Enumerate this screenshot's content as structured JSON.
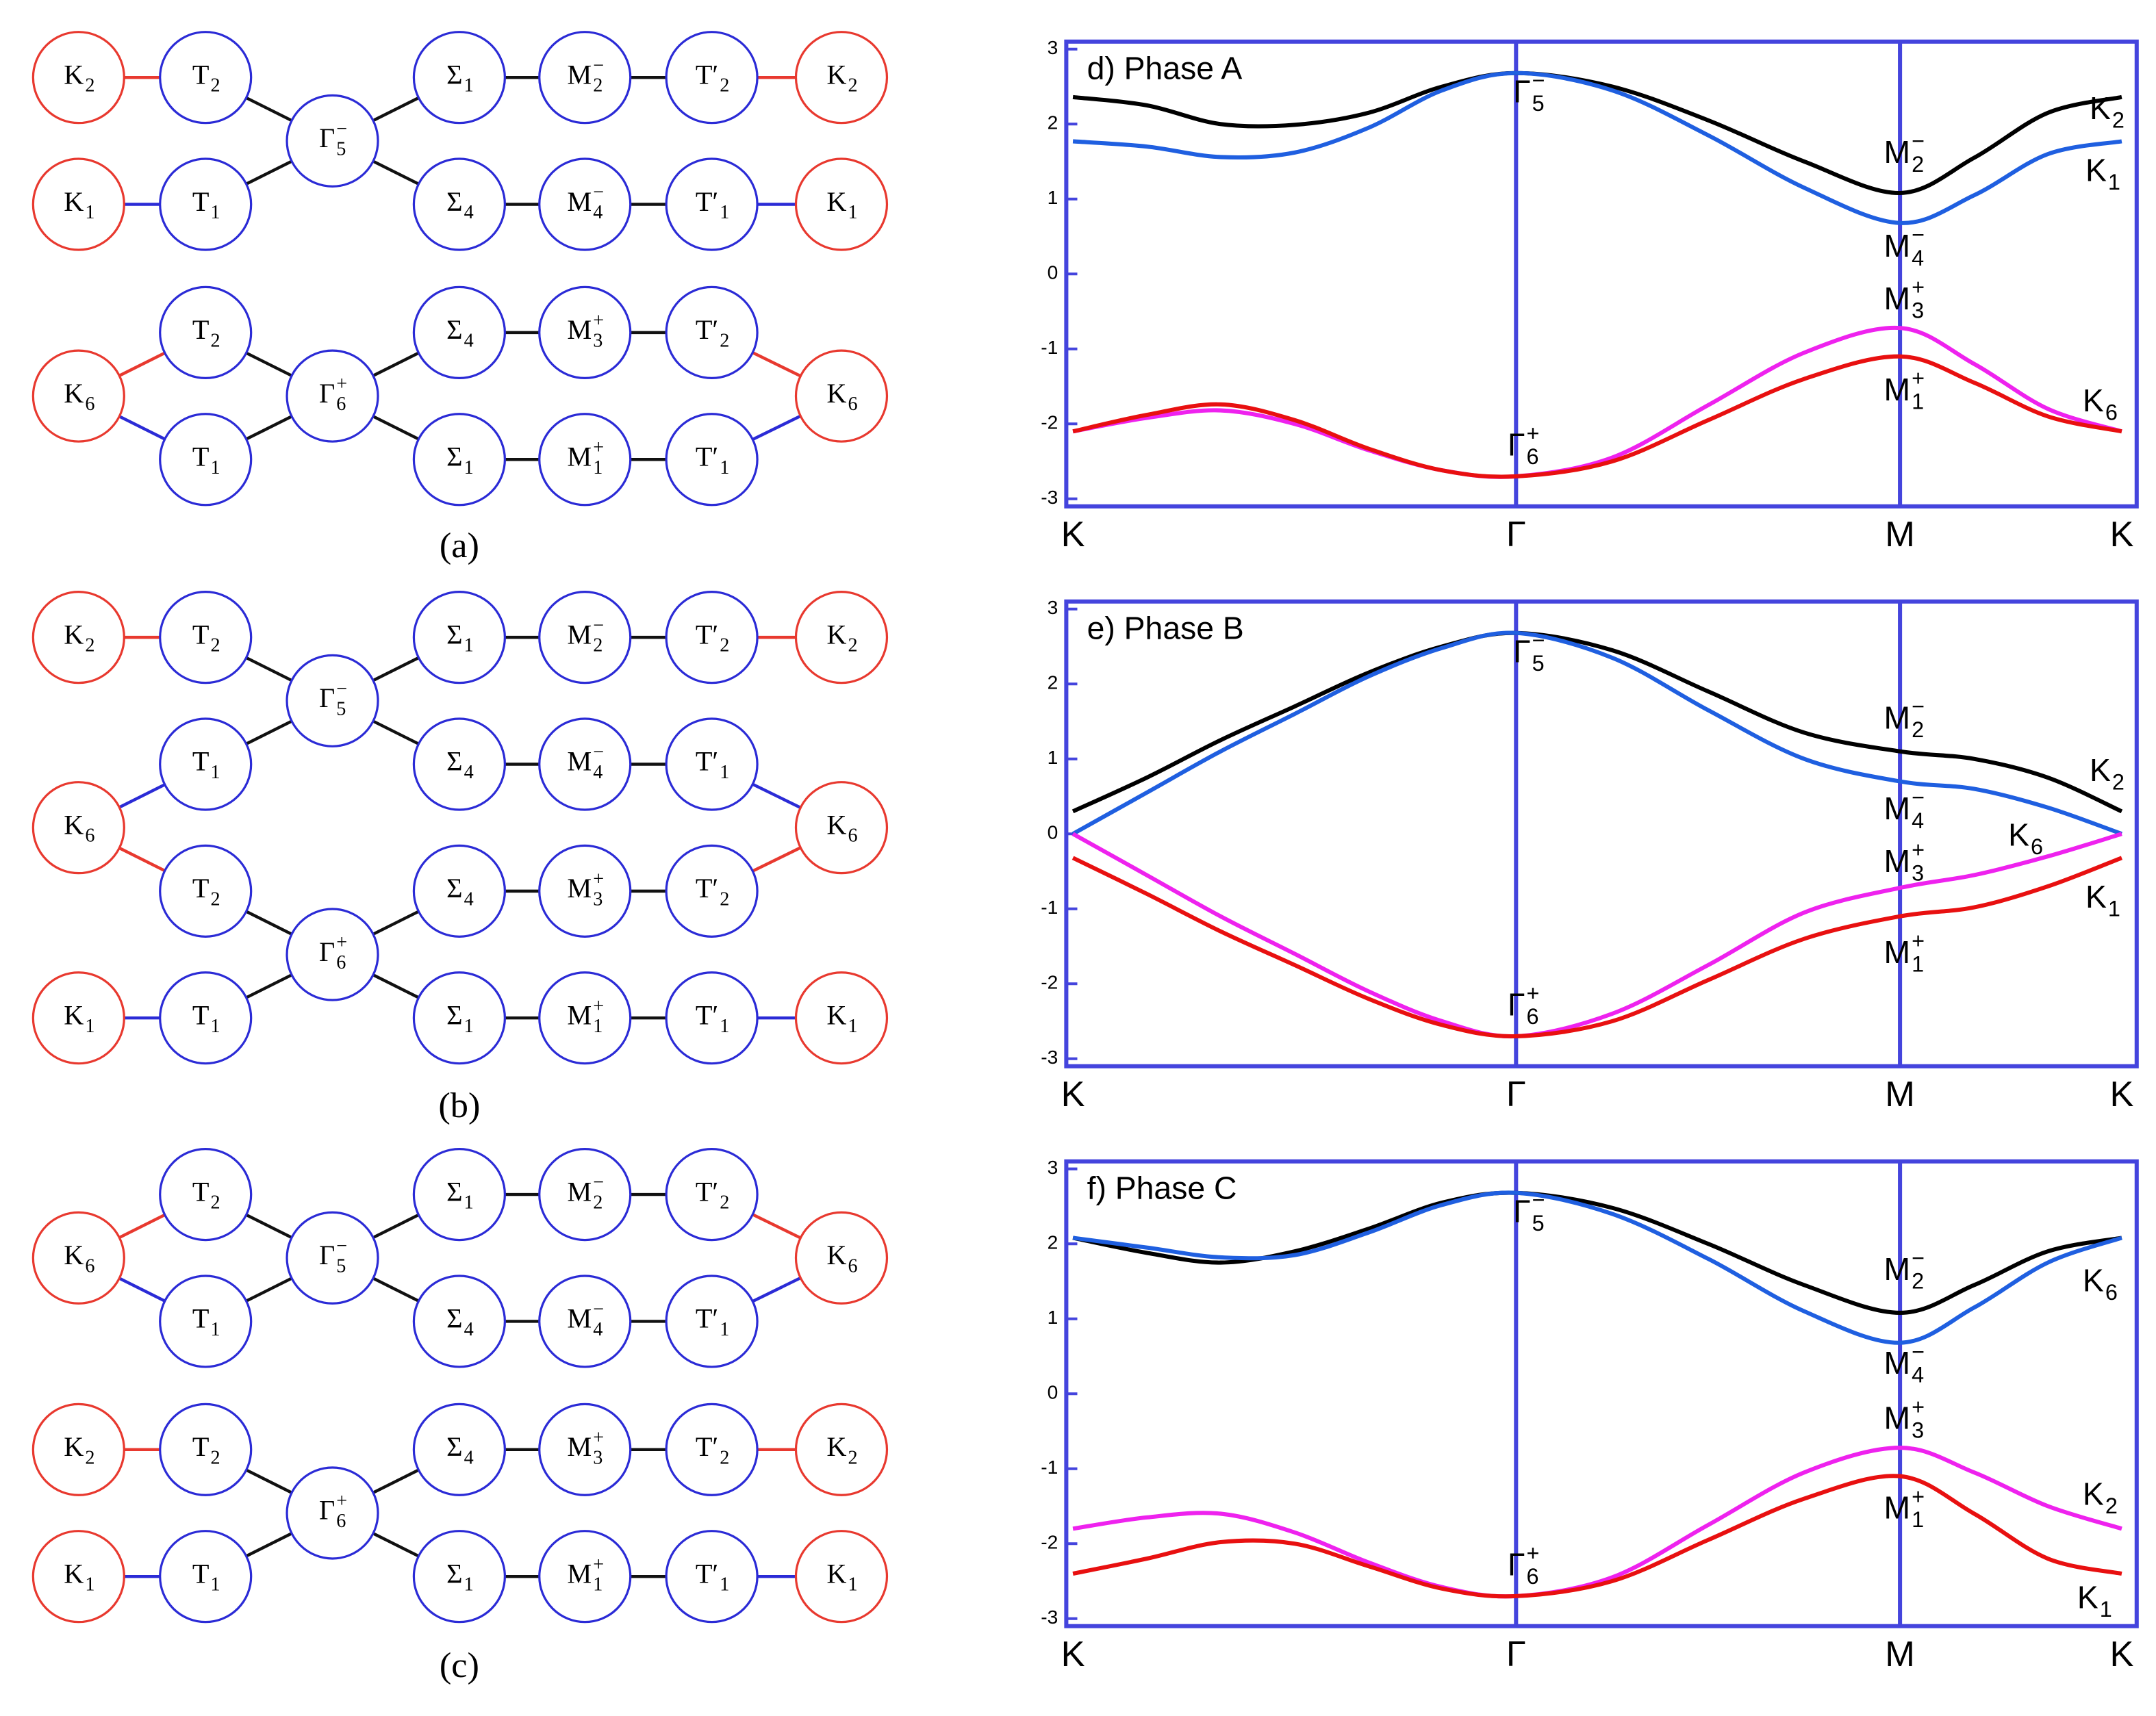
{
  "diagrams": [
    {
      "caption": "(a)",
      "nodes": [
        {
          "base": "K",
          "sub": "2",
          "color": "#e8392f"
        },
        {
          "base": "T",
          "sub": "2",
          "color": "#2b2bd6"
        },
        {
          "base": "Γ",
          "sub": "5",
          "sup": "−",
          "color": "#2b2bd6"
        },
        {
          "base": "Σ",
          "sub": "1",
          "color": "#2b2bd6"
        },
        {
          "base": "M",
          "sub": "2",
          "sup": "−",
          "color": "#2b2bd6"
        },
        {
          "base": "T′",
          "sub": "2",
          "color": "#2b2bd6"
        },
        {
          "base": "K",
          "sub": "2",
          "color": "#e8392f"
        },
        {
          "base": "K",
          "sub": "1",
          "color": "#e8392f"
        },
        {
          "base": "T",
          "sub": "1",
          "color": "#2b2bd6"
        },
        {
          "base": "Σ",
          "sub": "4",
          "color": "#2b2bd6"
        },
        {
          "base": "M",
          "sub": "4",
          "sup": "−",
          "color": "#2b2bd6"
        },
        {
          "base": "T′",
          "sub": "1",
          "color": "#2b2bd6"
        },
        {
          "base": "K",
          "sub": "1",
          "color": "#e8392f"
        },
        {
          "base": "K",
          "sub": "6",
          "color": "#e8392f"
        },
        {
          "base": "T",
          "sub": "2",
          "color": "#2b2bd6"
        },
        {
          "base": "T",
          "sub": "1",
          "color": "#2b2bd6"
        },
        {
          "base": "Γ",
          "sub": "6",
          "sup": "+",
          "color": "#2b2bd6"
        },
        {
          "base": "Σ",
          "sub": "4",
          "color": "#2b2bd6"
        },
        {
          "base": "M",
          "sub": "3",
          "sup": "+",
          "color": "#2b2bd6"
        },
        {
          "base": "T′",
          "sub": "2",
          "color": "#2b2bd6"
        },
        {
          "base": "Σ",
          "sub": "1",
          "color": "#2b2bd6"
        },
        {
          "base": "M",
          "sub": "1",
          "sup": "+",
          "color": "#2b2bd6"
        },
        {
          "base": "T′",
          "sub": "1",
          "color": "#2b2bd6"
        },
        {
          "base": "K",
          "sub": "6",
          "color": "#e8392f"
        }
      ]
    },
    {
      "caption": "(b)",
      "nodes": [
        {
          "base": "K",
          "sub": "2",
          "color": "#e8392f"
        },
        {
          "base": "T",
          "sub": "2",
          "color": "#2b2bd6"
        },
        {
          "base": "Γ",
          "sub": "5",
          "sup": "−",
          "color": "#2b2bd6"
        },
        {
          "base": "Σ",
          "sub": "1",
          "color": "#2b2bd6"
        },
        {
          "base": "M",
          "sub": "2",
          "sup": "−",
          "color": "#2b2bd6"
        },
        {
          "base": "T′",
          "sub": "2",
          "color": "#2b2bd6"
        },
        {
          "base": "K",
          "sub": "2",
          "color": "#e8392f"
        },
        {
          "base": "T",
          "sub": "1",
          "color": "#2b2bd6"
        },
        {
          "base": "Σ",
          "sub": "4",
          "color": "#2b2bd6"
        },
        {
          "base": "M",
          "sub": "4",
          "sup": "−",
          "color": "#2b2bd6"
        },
        {
          "base": "T′",
          "sub": "1",
          "color": "#2b2bd6"
        },
        {
          "base": "K",
          "sub": "6",
          "color": "#e8392f"
        },
        {
          "base": "K",
          "sub": "6",
          "color": "#e8392f"
        },
        {
          "base": "T",
          "sub": "2",
          "color": "#2b2bd6"
        },
        {
          "base": "Γ",
          "sub": "6",
          "sup": "+",
          "color": "#2b2bd6"
        },
        {
          "base": "Σ",
          "sub": "4",
          "color": "#2b2bd6"
        },
        {
          "base": "M",
          "sub": "3",
          "sup": "+",
          "color": "#2b2bd6"
        },
        {
          "base": "T′",
          "sub": "2",
          "color": "#2b2bd6"
        },
        {
          "base": "K",
          "sub": "1",
          "color": "#e8392f"
        },
        {
          "base": "T",
          "sub": "1",
          "color": "#2b2bd6"
        },
        {
          "base": "Σ",
          "sub": "1",
          "color": "#2b2bd6"
        },
        {
          "base": "M",
          "sub": "1",
          "sup": "+",
          "color": "#2b2bd6"
        },
        {
          "base": "T′",
          "sub": "1",
          "color": "#2b2bd6"
        },
        {
          "base": "K",
          "sub": "1",
          "color": "#e8392f"
        }
      ]
    },
    {
      "caption": "(c)",
      "nodes": [
        {
          "base": "K",
          "sub": "6",
          "color": "#e8392f"
        },
        {
          "base": "T",
          "sub": "2",
          "color": "#2b2bd6"
        },
        {
          "base": "T",
          "sub": "1",
          "color": "#2b2bd6"
        },
        {
          "base": "Γ",
          "sub": "5",
          "sup": "−",
          "color": "#2b2bd6"
        },
        {
          "base": "Σ",
          "sub": "1",
          "color": "#2b2bd6"
        },
        {
          "base": "M",
          "sub": "2",
          "sup": "−",
          "color": "#2b2bd6"
        },
        {
          "base": "T′",
          "sub": "2",
          "color": "#2b2bd6"
        },
        {
          "base": "Σ",
          "sub": "4",
          "color": "#2b2bd6"
        },
        {
          "base": "M",
          "sub": "4",
          "sup": "−",
          "color": "#2b2bd6"
        },
        {
          "base": "T′",
          "sub": "1",
          "color": "#2b2bd6"
        },
        {
          "base": "K",
          "sub": "6",
          "color": "#e8392f"
        },
        {
          "base": "K",
          "sub": "2",
          "color": "#e8392f"
        },
        {
          "base": "T",
          "sub": "2",
          "color": "#2b2bd6"
        },
        {
          "base": "Γ",
          "sub": "6",
          "sup": "+",
          "color": "#2b2bd6"
        },
        {
          "base": "Σ",
          "sub": "4",
          "color": "#2b2bd6"
        },
        {
          "base": "M",
          "sub": "3",
          "sup": "+",
          "color": "#2b2bd6"
        },
        {
          "base": "T′",
          "sub": "2",
          "color": "#2b2bd6"
        },
        {
          "base": "K",
          "sub": "2",
          "color": "#e8392f"
        },
        {
          "base": "K",
          "sub": "1",
          "color": "#e8392f"
        },
        {
          "base": "T",
          "sub": "1",
          "color": "#2b2bd6"
        },
        {
          "base": "Σ",
          "sub": "1",
          "color": "#2b2bd6"
        },
        {
          "base": "M",
          "sub": "1",
          "sup": "+",
          "color": "#2b2bd6"
        },
        {
          "base": "T′",
          "sub": "1",
          "color": "#2b2bd6"
        },
        {
          "base": "K",
          "sub": "1",
          "color": "#e8392f"
        }
      ]
    }
  ],
  "chart_data": [
    {
      "type": "line",
      "title": "d) Phase A",
      "frame_color": "#4444dd",
      "x": [
        0,
        0.222,
        0.444,
        0.667,
        0.889,
        1.111,
        1.333,
        1.622,
        1.911,
        2.2,
        2.488,
        2.711,
        2.933,
        3.155
      ],
      "xlim": [
        -0.02,
        3.2
      ],
      "xticks": [
        {
          "value": 0,
          "label": "K"
        },
        {
          "value": 1.333,
          "label": "Γ"
        },
        {
          "value": 2.488,
          "label": "M"
        },
        {
          "value": 3.155,
          "label": "K"
        }
      ],
      "ylim": [
        -3.1,
        3.1
      ],
      "yticks": [
        3,
        2,
        1,
        0,
        -1,
        -2,
        -3
      ],
      "series": [
        {
          "color": "#000000",
          "values": [
            2.36,
            2.25,
            2.0,
            1.99,
            2.15,
            2.5,
            2.68,
            2.5,
            2.05,
            1.5,
            1.08,
            1.55,
            2.15,
            2.36
          ]
        },
        {
          "color": "#1f5fe0",
          "values": [
            1.77,
            1.7,
            1.56,
            1.62,
            1.95,
            2.45,
            2.68,
            2.45,
            1.85,
            1.15,
            0.68,
            1.05,
            1.6,
            1.77
          ]
        },
        {
          "color": "#ee22ee",
          "values": [
            -2.1,
            -1.92,
            -1.82,
            -2.0,
            -2.35,
            -2.62,
            -2.7,
            -2.45,
            -1.75,
            -1.05,
            -0.72,
            -1.2,
            -1.8,
            -2.1
          ]
        },
        {
          "color": "#e81010",
          "values": [
            -2.1,
            -1.88,
            -1.74,
            -1.95,
            -2.33,
            -2.62,
            -2.7,
            -2.5,
            -1.95,
            -1.4,
            -1.1,
            -1.45,
            -1.9,
            -2.1
          ]
        }
      ],
      "annotations": [
        {
          "base": "Γ",
          "sub": "5",
          "sup": "−"
        },
        {
          "base": "M",
          "sub": "2",
          "sup": "−"
        },
        {
          "base": "K",
          "sub": "2"
        },
        {
          "base": "K",
          "sub": "1"
        },
        {
          "base": "M",
          "sub": "4",
          "sup": "−"
        },
        {
          "base": "M",
          "sub": "3",
          "sup": "+"
        },
        {
          "base": "M",
          "sub": "1",
          "sup": "+"
        },
        {
          "base": "K",
          "sub": "6"
        },
        {
          "base": "Γ",
          "sub": "6",
          "sup": "+"
        }
      ]
    },
    {
      "type": "line",
      "title": "e) Phase B",
      "frame_color": "#4444dd",
      "x": [
        0,
        0.222,
        0.444,
        0.667,
        0.889,
        1.111,
        1.333,
        1.622,
        1.911,
        2.2,
        2.488,
        2.711,
        2.933,
        3.155
      ],
      "xlim": [
        -0.02,
        3.2
      ],
      "xticks": [
        {
          "value": 0,
          "label": "K"
        },
        {
          "value": 1.333,
          "label": "Γ"
        },
        {
          "value": 2.488,
          "label": "M"
        },
        {
          "value": 3.155,
          "label": "K"
        }
      ],
      "ylim": [
        -3.1,
        3.1
      ],
      "yticks": [
        3,
        2,
        1,
        0,
        -1,
        -2,
        -3
      ],
      "series": [
        {
          "color": "#000000",
          "values": [
            0.3,
            0.75,
            1.25,
            1.7,
            2.15,
            2.5,
            2.68,
            2.45,
            1.9,
            1.35,
            1.1,
            1.0,
            0.75,
            0.3
          ]
        },
        {
          "color": "#1f5fe0",
          "values": [
            0,
            0.55,
            1.1,
            1.6,
            2.1,
            2.48,
            2.68,
            2.35,
            1.65,
            1.0,
            0.7,
            0.6,
            0.35,
            0
          ]
        },
        {
          "color": "#ee22ee",
          "values": [
            0,
            -0.55,
            -1.1,
            -1.6,
            -2.1,
            -2.5,
            -2.7,
            -2.4,
            -1.75,
            -1.05,
            -0.72,
            -0.55,
            -0.3,
            0
          ]
        },
        {
          "color": "#e81010",
          "values": [
            -0.32,
            -0.8,
            -1.3,
            -1.75,
            -2.2,
            -2.55,
            -2.7,
            -2.5,
            -1.95,
            -1.4,
            -1.1,
            -0.98,
            -0.7,
            -0.32
          ]
        }
      ],
      "annotations": [
        {
          "base": "Γ",
          "sub": "5",
          "sup": "−"
        },
        {
          "base": "M",
          "sub": "2",
          "sup": "−"
        },
        {
          "base": "K",
          "sub": "2"
        },
        {
          "base": "M",
          "sub": "4",
          "sup": "−"
        },
        {
          "base": "K",
          "sub": "6"
        },
        {
          "base": "M",
          "sub": "3",
          "sup": "+"
        },
        {
          "base": "K",
          "sub": "1"
        },
        {
          "base": "M",
          "sub": "1",
          "sup": "+"
        },
        {
          "base": "Γ",
          "sub": "6",
          "sup": "+"
        }
      ]
    },
    {
      "type": "line",
      "title": "f) Phase C",
      "frame_color": "#4444dd",
      "x": [
        0,
        0.222,
        0.444,
        0.667,
        0.889,
        1.111,
        1.333,
        1.622,
        1.911,
        2.2,
        2.488,
        2.711,
        2.933,
        3.155
      ],
      "xlim": [
        -0.02,
        3.2
      ],
      "xticks": [
        {
          "value": 0,
          "label": "K"
        },
        {
          "value": 1.333,
          "label": "Γ"
        },
        {
          "value": 2.488,
          "label": "M"
        },
        {
          "value": 3.155,
          "label": "K"
        }
      ],
      "ylim": [
        -3.1,
        3.1
      ],
      "yticks": [
        3,
        2,
        1,
        0,
        -1,
        -2,
        -3
      ],
      "series": [
        {
          "color": "#000000",
          "values": [
            2.08,
            1.88,
            1.75,
            1.9,
            2.2,
            2.55,
            2.68,
            2.48,
            2.0,
            1.45,
            1.08,
            1.45,
            1.9,
            2.08
          ]
        },
        {
          "color": "#1f5fe0",
          "values": [
            2.08,
            1.95,
            1.82,
            1.85,
            2.15,
            2.52,
            2.68,
            2.4,
            1.8,
            1.1,
            0.68,
            1.15,
            1.75,
            2.08
          ]
        },
        {
          "color": "#ee22ee",
          "values": [
            -1.8,
            -1.65,
            -1.6,
            -1.85,
            -2.25,
            -2.58,
            -2.7,
            -2.45,
            -1.75,
            -1.05,
            -0.72,
            -1.05,
            -1.5,
            -1.8
          ]
        },
        {
          "color": "#e81010",
          "values": [
            -2.4,
            -2.2,
            -1.98,
            -2.0,
            -2.3,
            -2.6,
            -2.7,
            -2.5,
            -1.95,
            -1.4,
            -1.1,
            -1.6,
            -2.2,
            -2.4
          ]
        }
      ],
      "annotations": [
        {
          "base": "Γ",
          "sub": "5",
          "sup": "−"
        },
        {
          "base": "M",
          "sub": "2",
          "sup": "−"
        },
        {
          "base": "K",
          "sub": "6"
        },
        {
          "base": "M",
          "sub": "4",
          "sup": "−"
        },
        {
          "base": "M",
          "sub": "3",
          "sup": "+"
        },
        {
          "base": "K",
          "sub": "2"
        },
        {
          "base": "M",
          "sub": "1",
          "sup": "+"
        },
        {
          "base": "K",
          "sub": "1"
        },
        {
          "base": "Γ",
          "sub": "6",
          "sup": "+"
        }
      ]
    }
  ]
}
